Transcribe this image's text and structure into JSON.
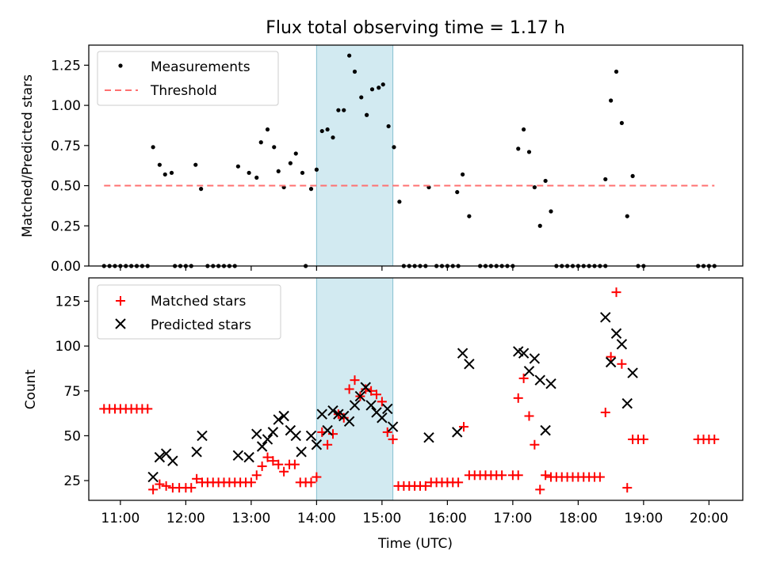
{
  "chart_data": [
    {
      "type": "scatter",
      "title": "Flux total observing time = 1.17 h",
      "xlabel": "",
      "ylabel": "Matched/Predicted stars",
      "xlim": [
        "10:31",
        "20:31"
      ],
      "ylim": [
        0,
        1.375
      ],
      "yticks": [
        "0.00",
        "0.25",
        "0.50",
        "0.75",
        "1.00",
        "1.25"
      ],
      "grid": false,
      "legend_position": "top-left",
      "highlight_span": {
        "start": "14:00",
        "end": "15:10",
        "color": "#add8e6"
      },
      "series": [
        {
          "name": "Measurements",
          "marker": "dot",
          "color": "#000000",
          "points": [
            [
              "10:45",
              0
            ],
            [
              "10:50",
              0
            ],
            [
              "10:55",
              0
            ],
            [
              "11:00",
              0
            ],
            [
              "11:05",
              0
            ],
            [
              "11:10",
              0
            ],
            [
              "11:15",
              0
            ],
            [
              "11:20",
              0
            ],
            [
              "11:25",
              0
            ],
            [
              "11:30",
              0.74
            ],
            [
              "11:36",
              0.63
            ],
            [
              "11:41",
              0.57
            ],
            [
              "11:47",
              0.58
            ],
            [
              "11:50",
              0
            ],
            [
              "11:55",
              0
            ],
            [
              "12:00",
              0
            ],
            [
              "12:05",
              0
            ],
            [
              "12:09",
              0.63
            ],
            [
              "12:14",
              0.48
            ],
            [
              "12:20",
              0
            ],
            [
              "12:25",
              0
            ],
            [
              "12:30",
              0
            ],
            [
              "12:35",
              0
            ],
            [
              "12:40",
              0
            ],
            [
              "12:45",
              0
            ],
            [
              "12:48",
              0.62
            ],
            [
              "12:58",
              0.58
            ],
            [
              "13:05",
              0.55
            ],
            [
              "13:09",
              0.77
            ],
            [
              "13:15",
              0.85
            ],
            [
              "13:21",
              0.74
            ],
            [
              "13:25",
              0.59
            ],
            [
              "13:30",
              0.49
            ],
            [
              "13:36",
              0.64
            ],
            [
              "13:41",
              0.7
            ],
            [
              "13:47",
              0.58
            ],
            [
              "13:50",
              0
            ],
            [
              "13:55",
              0.48
            ],
            [
              "14:00",
              0.6
            ],
            [
              "14:05",
              0.84
            ],
            [
              "14:10",
              0.85
            ],
            [
              "14:15",
              0.8
            ],
            [
              "14:20",
              0.97
            ],
            [
              "14:25",
              0.97
            ],
            [
              "14:30",
              1.31
            ],
            [
              "14:35",
              1.21
            ],
            [
              "14:41",
              1.05
            ],
            [
              "14:46",
              0.94
            ],
            [
              "14:51",
              1.1
            ],
            [
              "14:57",
              1.11
            ],
            [
              "15:01",
              1.13
            ],
            [
              "15:06",
              0.87
            ],
            [
              "15:11",
              0.74
            ],
            [
              "15:16",
              0.4
            ],
            [
              "15:20",
              0
            ],
            [
              "15:25",
              0
            ],
            [
              "15:30",
              0
            ],
            [
              "15:35",
              0
            ],
            [
              "15:40",
              0
            ],
            [
              "15:43",
              0.49
            ],
            [
              "15:50",
              0
            ],
            [
              "15:55",
              0
            ],
            [
              "16:00",
              0
            ],
            [
              "16:05",
              0
            ],
            [
              "16:10",
              0
            ],
            [
              "16:09",
              0.46
            ],
            [
              "16:14",
              0.57
            ],
            [
              "16:20",
              0.31
            ],
            [
              "16:30",
              0
            ],
            [
              "16:35",
              0
            ],
            [
              "16:40",
              0
            ],
            [
              "16:45",
              0
            ],
            [
              "16:50",
              0
            ],
            [
              "16:55",
              0
            ],
            [
              "17:00",
              0
            ],
            [
              "17:05",
              0.73
            ],
            [
              "17:10",
              0.85
            ],
            [
              "17:15",
              0.71
            ],
            [
              "17:20",
              0.49
            ],
            [
              "17:25",
              0.25
            ],
            [
              "17:30",
              0.53
            ],
            [
              "17:35",
              0.34
            ],
            [
              "17:40",
              0
            ],
            [
              "17:45",
              0
            ],
            [
              "17:50",
              0
            ],
            [
              "17:55",
              0
            ],
            [
              "18:00",
              0
            ],
            [
              "18:05",
              0
            ],
            [
              "18:10",
              0
            ],
            [
              "18:15",
              0
            ],
            [
              "18:20",
              0
            ],
            [
              "18:25",
              0
            ],
            [
              "18:25",
              0.54
            ],
            [
              "18:30",
              1.03
            ],
            [
              "18:35",
              1.21
            ],
            [
              "18:40",
              0.89
            ],
            [
              "18:45",
              0.31
            ],
            [
              "18:50",
              0.56
            ],
            [
              "18:55",
              0
            ],
            [
              "19:00",
              0
            ],
            [
              "19:50",
              0
            ],
            [
              "19:55",
              0
            ],
            [
              "20:00",
              0
            ],
            [
              "20:05",
              0
            ]
          ]
        },
        {
          "name": "Threshold",
          "marker": "dashed-line",
          "color": "#ff7070",
          "points": [
            [
              "10:45",
              0.5
            ],
            [
              "20:05",
              0.5
            ]
          ]
        }
      ]
    },
    {
      "type": "scatter",
      "title": "",
      "xlabel": "Time (UTC)",
      "ylabel": "Count",
      "xlim": [
        "10:31",
        "20:31"
      ],
      "ylim": [
        14,
        138
      ],
      "yticks": [
        "25",
        "50",
        "75",
        "100",
        "125"
      ],
      "xticks": [
        "11:00",
        "12:00",
        "13:00",
        "14:00",
        "15:00",
        "16:00",
        "17:00",
        "18:00",
        "19:00",
        "20:00"
      ],
      "grid": false,
      "legend_position": "top-left",
      "highlight_span": {
        "start": "14:00",
        "end": "15:10",
        "color": "#add8e6"
      },
      "series": [
        {
          "name": "Matched stars",
          "marker": "plus",
          "color": "#ff0000",
          "points": [
            [
              "10:45",
              65
            ],
            [
              "10:50",
              65
            ],
            [
              "10:55",
              65
            ],
            [
              "11:00",
              65
            ],
            [
              "11:05",
              65
            ],
            [
              "11:10",
              65
            ],
            [
              "11:15",
              65
            ],
            [
              "11:20",
              65
            ],
            [
              "11:25",
              65
            ],
            [
              "11:30",
              20
            ],
            [
              "11:36",
              23
            ],
            [
              "11:42",
              22
            ],
            [
              "11:48",
              21
            ],
            [
              "11:54",
              21
            ],
            [
              "12:00",
              21
            ],
            [
              "12:05",
              21
            ],
            [
              "12:10",
              26
            ],
            [
              "12:15",
              24
            ],
            [
              "12:20",
              24
            ],
            [
              "12:25",
              24
            ],
            [
              "12:30",
              24
            ],
            [
              "12:35",
              24
            ],
            [
              "12:40",
              24
            ],
            [
              "12:45",
              24
            ],
            [
              "12:50",
              24
            ],
            [
              "12:55",
              24
            ],
            [
              "13:00",
              24
            ],
            [
              "13:05",
              28
            ],
            [
              "13:10",
              33
            ],
            [
              "13:15",
              38
            ],
            [
              "13:20",
              36
            ],
            [
              "13:25",
              34
            ],
            [
              "13:30",
              30
            ],
            [
              "13:35",
              34
            ],
            [
              "13:40",
              34
            ],
            [
              "13:45",
              24
            ],
            [
              "13:50",
              24
            ],
            [
              "13:55",
              24
            ],
            [
              "14:00",
              27
            ],
            [
              "14:05",
              52
            ],
            [
              "14:10",
              45
            ],
            [
              "14:15",
              51
            ],
            [
              "14:20",
              62
            ],
            [
              "14:25",
              60
            ],
            [
              "14:30",
              76
            ],
            [
              "14:35",
              81
            ],
            [
              "14:40",
              72
            ],
            [
              "14:45",
              76
            ],
            [
              "14:50",
              75
            ],
            [
              "14:55",
              73
            ],
            [
              "15:00",
              69
            ],
            [
              "15:05",
              52
            ],
            [
              "15:10",
              48
            ],
            [
              "15:15",
              22
            ],
            [
              "15:20",
              22
            ],
            [
              "15:25",
              22
            ],
            [
              "15:30",
              22
            ],
            [
              "15:35",
              22
            ],
            [
              "15:40",
              22
            ],
            [
              "15:45",
              24
            ],
            [
              "15:50",
              24
            ],
            [
              "15:55",
              24
            ],
            [
              "16:00",
              24
            ],
            [
              "16:05",
              24
            ],
            [
              "16:10",
              24
            ],
            [
              "16:15",
              55
            ],
            [
              "16:20",
              28
            ],
            [
              "16:25",
              28
            ],
            [
              "16:30",
              28
            ],
            [
              "16:35",
              28
            ],
            [
              "16:40",
              28
            ],
            [
              "16:45",
              28
            ],
            [
              "16:50",
              28
            ],
            [
              "17:00",
              28
            ],
            [
              "17:05",
              28
            ],
            [
              "17:05",
              71
            ],
            [
              "17:10",
              82
            ],
            [
              "17:15",
              61
            ],
            [
              "17:20",
              45
            ],
            [
              "17:25",
              20
            ],
            [
              "17:30",
              28
            ],
            [
              "17:35",
              27
            ],
            [
              "17:40",
              27
            ],
            [
              "17:45",
              27
            ],
            [
              "17:50",
              27
            ],
            [
              "17:55",
              27
            ],
            [
              "18:00",
              27
            ],
            [
              "18:05",
              27
            ],
            [
              "18:10",
              27
            ],
            [
              "18:15",
              27
            ],
            [
              "18:20",
              27
            ],
            [
              "18:25",
              63
            ],
            [
              "18:30",
              94
            ],
            [
              "18:35",
              130
            ],
            [
              "18:40",
              90
            ],
            [
              "18:45",
              21
            ],
            [
              "18:50",
              48
            ],
            [
              "18:55",
              48
            ],
            [
              "19:00",
              48
            ],
            [
              "19:50",
              48
            ],
            [
              "19:55",
              48
            ],
            [
              "20:00",
              48
            ],
            [
              "20:05",
              48
            ]
          ]
        },
        {
          "name": "Predicted stars",
          "marker": "x",
          "color": "#000000",
          "points": [
            [
              "11:30",
              27
            ],
            [
              "11:36",
              38
            ],
            [
              "11:42",
              40
            ],
            [
              "11:48",
              36
            ],
            [
              "12:10",
              41
            ],
            [
              "12:15",
              50
            ],
            [
              "12:48",
              39
            ],
            [
              "12:58",
              38
            ],
            [
              "13:05",
              51
            ],
            [
              "13:10",
              44
            ],
            [
              "13:15",
              48
            ],
            [
              "13:20",
              52
            ],
            [
              "13:25",
              59
            ],
            [
              "13:30",
              61
            ],
            [
              "13:36",
              53
            ],
            [
              "13:41",
              50
            ],
            [
              "13:46",
              41
            ],
            [
              "13:55",
              50
            ],
            [
              "14:00",
              45
            ],
            [
              "14:05",
              62
            ],
            [
              "14:10",
              53
            ],
            [
              "14:15",
              64
            ],
            [
              "14:20",
              62
            ],
            [
              "14:25",
              61
            ],
            [
              "14:30",
              58
            ],
            [
              "14:35",
              67
            ],
            [
              "14:40",
              72
            ],
            [
              "14:45",
              77
            ],
            [
              "14:50",
              67
            ],
            [
              "14:55",
              63
            ],
            [
              "15:00",
              60
            ],
            [
              "15:05",
              65
            ],
            [
              "15:10",
              55
            ],
            [
              "15:43",
              49
            ],
            [
              "16:09",
              52
            ],
            [
              "16:14",
              96
            ],
            [
              "16:20",
              90
            ],
            [
              "17:05",
              97
            ],
            [
              "17:10",
              96
            ],
            [
              "17:15",
              86
            ],
            [
              "17:20",
              93
            ],
            [
              "17:25",
              81
            ],
            [
              "17:30",
              53
            ],
            [
              "17:35",
              79
            ],
            [
              "18:25",
              116
            ],
            [
              "18:30",
              91
            ],
            [
              "18:35",
              107
            ],
            [
              "18:40",
              101
            ],
            [
              "18:45",
              68
            ],
            [
              "18:50",
              85
            ]
          ]
        }
      ]
    }
  ]
}
